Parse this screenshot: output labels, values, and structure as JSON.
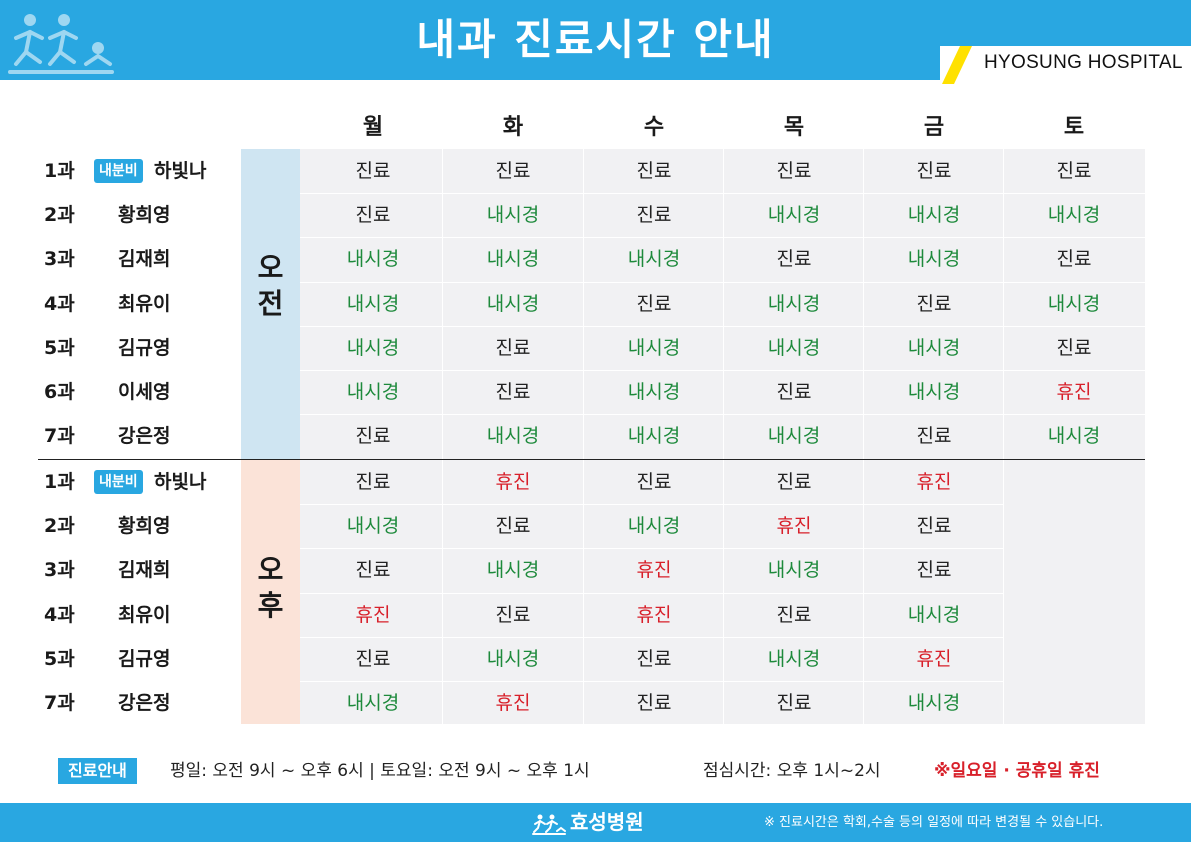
{
  "header": {
    "title": "내과 진료시간 안내",
    "brand": "HYOSUNG HOSPITAL",
    "logo_icon": "people-logo-icon"
  },
  "days": [
    "월",
    "화",
    "수",
    "목",
    "금",
    "토"
  ],
  "am": {
    "label": "오전",
    "rows": [
      {
        "dept": "1과",
        "badge": "내분비",
        "doctor": "하빛나",
        "slots": [
          "진료",
          "진료",
          "진료",
          "진료",
          "진료",
          "진료"
        ]
      },
      {
        "dept": "2과",
        "badge": "",
        "doctor": "황희영",
        "slots": [
          "진료",
          "내시경",
          "진료",
          "내시경",
          "내시경",
          "내시경"
        ]
      },
      {
        "dept": "3과",
        "badge": "",
        "doctor": "김재희",
        "slots": [
          "내시경",
          "내시경",
          "내시경",
          "진료",
          "내시경",
          "진료"
        ]
      },
      {
        "dept": "4과",
        "badge": "",
        "doctor": "최유이",
        "slots": [
          "내시경",
          "내시경",
          "진료",
          "내시경",
          "진료",
          "내시경"
        ]
      },
      {
        "dept": "5과",
        "badge": "",
        "doctor": "김규영",
        "slots": [
          "내시경",
          "진료",
          "내시경",
          "내시경",
          "내시경",
          "진료"
        ]
      },
      {
        "dept": "6과",
        "badge": "",
        "doctor": "이세영",
        "slots": [
          "내시경",
          "진료",
          "내시경",
          "진료",
          "내시경",
          "휴진"
        ]
      },
      {
        "dept": "7과",
        "badge": "",
        "doctor": "강은정",
        "slots": [
          "진료",
          "내시경",
          "내시경",
          "내시경",
          "진료",
          "내시경"
        ]
      }
    ]
  },
  "pm": {
    "label": "오후",
    "rows": [
      {
        "dept": "1과",
        "badge": "내분비",
        "doctor": "하빛나",
        "slots": [
          "진료",
          "휴진",
          "진료",
          "진료",
          "휴진"
        ]
      },
      {
        "dept": "2과",
        "badge": "",
        "doctor": "황희영",
        "slots": [
          "내시경",
          "진료",
          "내시경",
          "휴진",
          "진료"
        ]
      },
      {
        "dept": "3과",
        "badge": "",
        "doctor": "김재희",
        "slots": [
          "진료",
          "내시경",
          "휴진",
          "내시경",
          "진료"
        ]
      },
      {
        "dept": "4과",
        "badge": "",
        "doctor": "최유이",
        "slots": [
          "휴진",
          "진료",
          "휴진",
          "진료",
          "내시경"
        ]
      },
      {
        "dept": "5과",
        "badge": "",
        "doctor": "김규영",
        "slots": [
          "진료",
          "내시경",
          "진료",
          "내시경",
          "휴진"
        ]
      },
      {
        "dept": "7과",
        "badge": "",
        "doctor": "강은정",
        "slots": [
          "내시경",
          "휴진",
          "진료",
          "진료",
          "내시경"
        ]
      }
    ]
  },
  "info": {
    "tag": "진료안내",
    "hours": "평일: 오전 9시 ~ 오후 6시  |  토요일: 오전 9시 ~ 오후 1시",
    "lunch": "점심시간: 오후 1시~2시",
    "closed": "※일요일 · 공휴일 휴진"
  },
  "footer": {
    "logo_text": "효성병원",
    "note": "※ 진료시간은 학회,수술 등의 일정에 따라 변경될 수 있습니다."
  },
  "colors": {
    "brand_blue": "#29a7e1",
    "endoscopy_green": "#1e8a3c",
    "closed_red": "#d8202a",
    "am_band": "#cfe5f2",
    "pm_band": "#fbe3d8",
    "accent_yellow": "#ffe100"
  }
}
